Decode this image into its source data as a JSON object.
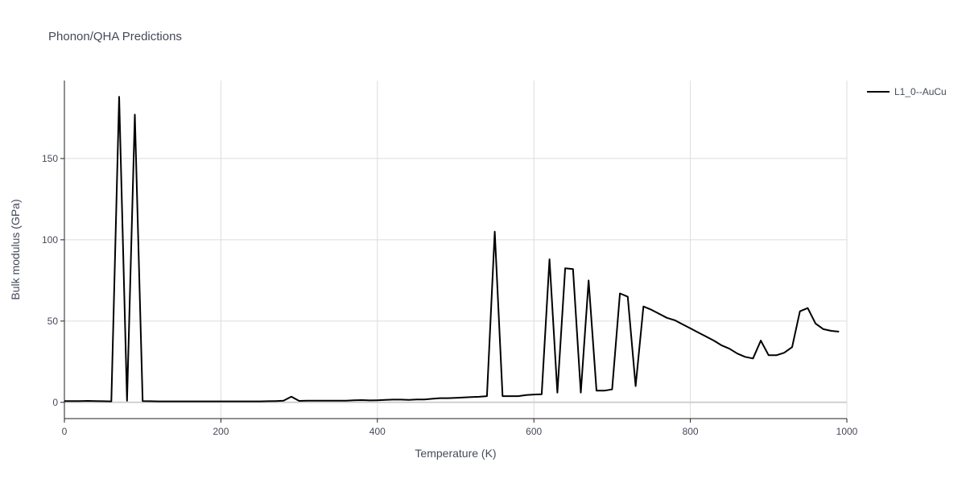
{
  "chart_data": {
    "type": "line",
    "title": "Phonon/QHA Predictions",
    "xlabel": "Temperature (K)",
    "ylabel": "Bulk modulus (GPa)",
    "xlim": [
      0,
      1000
    ],
    "ylim": [
      -10,
      198
    ],
    "xticks": [
      0,
      200,
      400,
      600,
      800,
      1000
    ],
    "yticks": [
      0,
      50,
      100,
      150
    ],
    "grid": true,
    "legend_position": "top-right",
    "series": [
      {
        "name": "L1_0--AuCu",
        "color": "#000000",
        "x": [
          0,
          10,
          20,
          30,
          40,
          50,
          60,
          70,
          80,
          90,
          100,
          110,
          120,
          130,
          140,
          150,
          160,
          170,
          180,
          190,
          200,
          210,
          220,
          230,
          240,
          250,
          260,
          270,
          280,
          290,
          300,
          310,
          320,
          330,
          340,
          350,
          360,
          370,
          380,
          390,
          400,
          410,
          420,
          430,
          440,
          450,
          460,
          470,
          480,
          490,
          500,
          510,
          520,
          530,
          540,
          550,
          560,
          570,
          580,
          590,
          600,
          610,
          620,
          630,
          640,
          650,
          660,
          670,
          680,
          690,
          700,
          710,
          720,
          730,
          740,
          750,
          760,
          770,
          780,
          790,
          800,
          810,
          820,
          830,
          840,
          850,
          860,
          870,
          880,
          890,
          900,
          910,
          920,
          930,
          940,
          950,
          960,
          970,
          980,
          990
        ],
        "y": [
          0.8,
          0.8,
          0.8,
          0.9,
          0.8,
          0.7,
          0.6,
          188,
          1.0,
          177,
          0.8,
          0.7,
          0.6,
          0.6,
          0.6,
          0.6,
          0.6,
          0.6,
          0.6,
          0.6,
          0.6,
          0.6,
          0.6,
          0.6,
          0.6,
          0.6,
          0.7,
          0.8,
          1.0,
          3.5,
          0.9,
          1.0,
          1.0,
          1.0,
          1.0,
          1.0,
          1.0,
          1.3,
          1.4,
          1.2,
          1.3,
          1.5,
          1.7,
          1.7,
          1.5,
          1.8,
          1.8,
          2.2,
          2.6,
          2.6,
          2.8,
          3.0,
          3.2,
          3.4,
          3.8,
          105,
          3.8,
          3.8,
          3.8,
          4.5,
          4.8,
          5.0,
          88,
          6.0,
          82.5,
          82,
          6.0,
          75,
          7.2,
          7.2,
          8.0,
          67,
          65,
          10.0,
          59,
          57,
          54.5,
          52,
          50.5,
          48,
          45.5,
          43,
          40.5,
          38,
          35,
          33,
          30,
          28,
          27,
          38,
          29,
          29,
          30.5,
          34,
          56,
          58,
          48.5,
          45,
          44,
          43.5
        ]
      }
    ]
  }
}
